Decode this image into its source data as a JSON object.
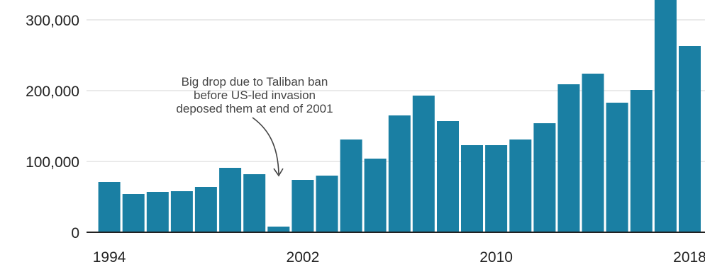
{
  "chart_data": {
    "type": "bar",
    "title": "",
    "xlabel": "",
    "ylabel": "",
    "categories": [
      "1994",
      "1995",
      "1996",
      "1997",
      "1998",
      "1999",
      "2000",
      "2001",
      "2002",
      "2003",
      "2004",
      "2005",
      "2006",
      "2007",
      "2008",
      "2009",
      "2010",
      "2011",
      "2012",
      "2013",
      "2014",
      "2015",
      "2016",
      "2017",
      "2018"
    ],
    "values": [
      71000,
      54000,
      57000,
      58000,
      64000,
      91000,
      82000,
      8000,
      74000,
      80000,
      131000,
      104000,
      165000,
      193000,
      157000,
      123000,
      123000,
      131000,
      154000,
      209000,
      224000,
      183000,
      201000,
      328000,
      263000
    ],
    "ylim": [
      0,
      330000
    ],
    "yticks": [
      0,
      100000,
      200000,
      300000
    ],
    "ytick_labels": [
      "0",
      "100,000",
      "200,000",
      "300,000"
    ],
    "xtick_labels": [
      "1994",
      "2002",
      "2010",
      "2018"
    ],
    "bar_color": "#1a7fa3",
    "grid": true,
    "annotation": {
      "lines": [
        "Big drop due to Taliban ban",
        "before US-led invasion",
        "deposed them at end of 2001"
      ],
      "target": "2001"
    }
  }
}
